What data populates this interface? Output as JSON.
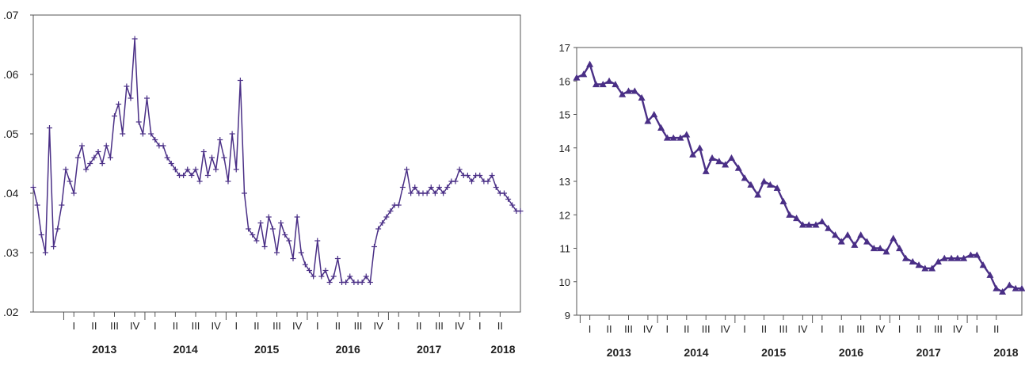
{
  "chart_data": [
    {
      "type": "line",
      "marker": "plus",
      "color": "#4a2f86",
      "ylim": [
        0.02,
        0.07
      ],
      "yticks": [
        ".02",
        ".03",
        ".04",
        ".05",
        ".06",
        ".07"
      ],
      "ytick_values": [
        0.02,
        0.03,
        0.04,
        0.05,
        0.06,
        0.07
      ],
      "xlim": [
        2012.5,
        2018.5
      ],
      "quarter_ticks": [
        "I",
        "II",
        "III",
        "IV",
        "I",
        "II",
        "III",
        "IV",
        "I",
        "II",
        "III",
        "IV",
        "I",
        "II",
        "III",
        "IV",
        "I",
        "II",
        "III",
        "IV",
        "I",
        "II"
      ],
      "quarter_tick_x": [
        2013.0,
        2013.25,
        2013.5,
        2013.75,
        2014.0,
        2014.25,
        2014.5,
        2014.75,
        2015.0,
        2015.25,
        2015.5,
        2015.75,
        2016.0,
        2016.25,
        2016.5,
        2016.75,
        2017.0,
        2017.25,
        2017.5,
        2017.75,
        2018.0,
        2018.25
      ],
      "years": [
        "2013",
        "2014",
        "2015",
        "2016",
        "2017",
        "2018"
      ],
      "series": [
        {
          "x": [
            2012.5,
            2012.55,
            2012.6,
            2012.65,
            2012.7,
            2012.75,
            2012.8,
            2012.85,
            2012.9,
            2012.95,
            2013.0,
            2013.05,
            2013.1,
            2013.15,
            2013.2,
            2013.25,
            2013.3,
            2013.35,
            2013.4,
            2013.45,
            2013.5,
            2013.55,
            2013.6,
            2013.65,
            2013.7,
            2013.75,
            2013.8,
            2013.85,
            2013.9,
            2013.95,
            2014.0,
            2014.05,
            2014.1,
            2014.15,
            2014.2,
            2014.25,
            2014.3,
            2014.35,
            2014.4,
            2014.45,
            2014.5,
            2014.55,
            2014.6,
            2014.65,
            2014.7,
            2014.75,
            2014.8,
            2014.85,
            2014.9,
            2014.95,
            2015.0,
            2015.05,
            2015.1,
            2015.15,
            2015.2,
            2015.25,
            2015.3,
            2015.35,
            2015.4,
            2015.45,
            2015.5,
            2015.55,
            2015.6,
            2015.65,
            2015.7,
            2015.75,
            2015.8,
            2015.85,
            2015.9,
            2015.95,
            2016.0,
            2016.05,
            2016.1,
            2016.15,
            2016.2,
            2016.25,
            2016.3,
            2016.35,
            2016.4,
            2016.45,
            2016.5,
            2016.55,
            2016.6,
            2016.65,
            2016.7,
            2016.75,
            2016.8,
            2016.85,
            2016.9,
            2016.95,
            2017.0,
            2017.05,
            2017.1,
            2017.15,
            2017.2,
            2017.25,
            2017.3,
            2017.35,
            2017.4,
            2017.45,
            2017.5,
            2017.55,
            2017.6,
            2017.65,
            2017.7,
            2017.75,
            2017.8,
            2017.85,
            2017.9,
            2017.95,
            2018.0,
            2018.05,
            2018.1,
            2018.15,
            2018.2,
            2018.25,
            2018.3,
            2018.35,
            2018.4,
            2018.45,
            2018.5
          ],
          "values": [
            0.041,
            0.038,
            0.033,
            0.03,
            0.051,
            0.031,
            0.034,
            0.038,
            0.044,
            0.042,
            0.04,
            0.046,
            0.048,
            0.044,
            0.045,
            0.046,
            0.047,
            0.045,
            0.048,
            0.046,
            0.053,
            0.055,
            0.05,
            0.058,
            0.056,
            0.066,
            0.052,
            0.05,
            0.056,
            0.05,
            0.049,
            0.048,
            0.048,
            0.046,
            0.045,
            0.044,
            0.043,
            0.043,
            0.044,
            0.043,
            0.044,
            0.042,
            0.047,
            0.043,
            0.046,
            0.044,
            0.049,
            0.046,
            0.042,
            0.05,
            0.044,
            0.059,
            0.04,
            0.034,
            0.033,
            0.032,
            0.035,
            0.031,
            0.036,
            0.034,
            0.03,
            0.035,
            0.033,
            0.032,
            0.029,
            0.036,
            0.03,
            0.028,
            0.027,
            0.026,
            0.032,
            0.026,
            0.027,
            0.025,
            0.026,
            0.029,
            0.025,
            0.025,
            0.026,
            0.025,
            0.025,
            0.025,
            0.026,
            0.025,
            0.031,
            0.034,
            0.035,
            0.036,
            0.037,
            0.038,
            0.038,
            0.041,
            0.044,
            0.04,
            0.041,
            0.04,
            0.04,
            0.04,
            0.041,
            0.04,
            0.041,
            0.04,
            0.041,
            0.042,
            0.042,
            0.044,
            0.043,
            0.043,
            0.042,
            0.043,
            0.043,
            0.042,
            0.042,
            0.043,
            0.041,
            0.04,
            0.04,
            0.039,
            0.038,
            0.037,
            0.037
          ]
        }
      ]
    },
    {
      "type": "line",
      "marker": "triangle",
      "color": "#4a2f86",
      "ylim": [
        9,
        17
      ],
      "yticks": [
        "9",
        "10",
        "11",
        "12",
        "13",
        "14",
        "15",
        "16",
        "17"
      ],
      "ytick_values": [
        9,
        10,
        11,
        12,
        13,
        14,
        15,
        16,
        17
      ],
      "xlim": [
        2012.83,
        2018.58
      ],
      "quarter_ticks": [
        "I",
        "II",
        "III",
        "IV",
        "I",
        "II",
        "III",
        "IV",
        "I",
        "II",
        "III",
        "IV",
        "I",
        "II",
        "III",
        "IV",
        "I",
        "II",
        "III",
        "IV",
        "I",
        "II"
      ],
      "quarter_tick_x": [
        2013.0,
        2013.25,
        2013.5,
        2013.75,
        2014.0,
        2014.25,
        2014.5,
        2014.75,
        2015.0,
        2015.25,
        2015.5,
        2015.75,
        2016.0,
        2016.25,
        2016.5,
        2016.75,
        2017.0,
        2017.25,
        2017.5,
        2017.75,
        2018.0,
        2018.25
      ],
      "years": [
        "2013",
        "2014",
        "2015",
        "2016",
        "2017",
        "2018"
      ],
      "series": [
        {
          "x": [
            2012.83,
            2012.92,
            2013.0,
            2013.08,
            2013.17,
            2013.25,
            2013.33,
            2013.42,
            2013.5,
            2013.58,
            2013.67,
            2013.75,
            2013.83,
            2013.92,
            2014.0,
            2014.08,
            2014.17,
            2014.25,
            2014.33,
            2014.42,
            2014.5,
            2014.58,
            2014.67,
            2014.75,
            2014.83,
            2014.92,
            2015.0,
            2015.08,
            2015.17,
            2015.25,
            2015.33,
            2015.42,
            2015.5,
            2015.58,
            2015.67,
            2015.75,
            2015.83,
            2015.92,
            2016.0,
            2016.08,
            2016.17,
            2016.25,
            2016.33,
            2016.42,
            2016.5,
            2016.58,
            2016.67,
            2016.75,
            2016.83,
            2016.92,
            2017.0,
            2017.08,
            2017.17,
            2017.25,
            2017.33,
            2017.42,
            2017.5,
            2017.58,
            2017.67,
            2017.75,
            2017.83,
            2017.92,
            2018.0,
            2018.08,
            2018.17,
            2018.25,
            2018.33,
            2018.42,
            2018.5,
            2018.58
          ],
          "values": [
            16.1,
            16.2,
            16.5,
            15.9,
            15.9,
            16.0,
            15.9,
            15.6,
            15.7,
            15.7,
            15.5,
            14.8,
            15.0,
            14.6,
            14.3,
            14.3,
            14.3,
            14.4,
            13.8,
            14.0,
            13.3,
            13.7,
            13.6,
            13.5,
            13.7,
            13.4,
            13.1,
            12.9,
            12.6,
            13.0,
            12.9,
            12.8,
            12.4,
            12.0,
            11.9,
            11.7,
            11.7,
            11.7,
            11.8,
            11.6,
            11.4,
            11.2,
            11.4,
            11.1,
            11.4,
            11.2,
            11.0,
            11.0,
            10.9,
            11.3,
            11.0,
            10.7,
            10.6,
            10.5,
            10.4,
            10.4,
            10.6,
            10.7,
            10.7,
            10.7,
            10.7,
            10.8,
            10.8,
            10.5,
            10.2,
            9.8,
            9.7,
            9.9,
            9.8,
            9.8
          ]
        }
      ]
    }
  ]
}
